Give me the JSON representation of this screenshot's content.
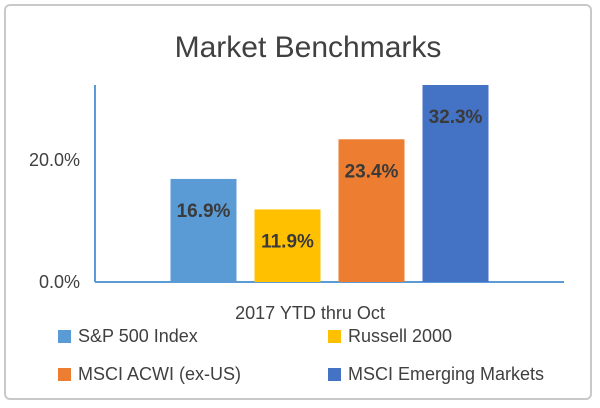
{
  "chart_data": {
    "type": "bar",
    "title": "Market Benchmarks",
    "xlabel": "2017 YTD thru Oct",
    "ylabel": "",
    "ylim": [
      0,
      32.3
    ],
    "yticks": [
      "0.0%",
      "20.0%"
    ],
    "ytick_values": [
      0,
      20
    ],
    "grid": false,
    "legend_position": "bottom",
    "categories": [
      "2017 YTD thru Oct"
    ],
    "series": [
      {
        "name": "S&P 500 Index",
        "values": [
          16.9
        ],
        "label": "16.9%",
        "color": "#5B9BD5"
      },
      {
        "name": "Russell 2000",
        "values": [
          11.9
        ],
        "label": "11.9%",
        "color": "#FFC000"
      },
      {
        "name": "MSCI ACWI (ex-US)",
        "values": [
          23.4
        ],
        "label": "23.4%",
        "color": "#ED7D31"
      },
      {
        "name": "MSCI Emerging Markets",
        "values": [
          32.3
        ],
        "label": "32.3%",
        "color": "#4472C4"
      }
    ]
  },
  "colors": {
    "axis": "#5B9BD5",
    "text": "#404040",
    "data_label": "#3a3a3a"
  }
}
